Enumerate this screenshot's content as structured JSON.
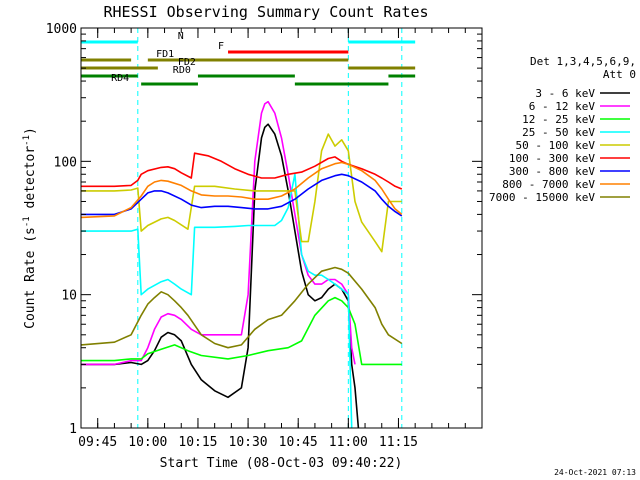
{
  "chart_data": {
    "type": "line",
    "title": "RHESSI Observing Summary Count Rates",
    "xlabel": "Start Time (08-Oct-03 09:40:22)",
    "ylabel_main": "Count Rate (s",
    "ylabel_sup1": "-1",
    "ylabel_mid": " detector",
    "ylabel_sup2": "-1",
    "ylabel_end": ")",
    "y_scale": "log",
    "ylim": [
      1,
      1000
    ],
    "xlim_minutes": [
      -20,
      100
    ],
    "x_ticks": [
      {
        "t": -15,
        "label": "09:45"
      },
      {
        "t": 0,
        "label": "10:00"
      },
      {
        "t": 15,
        "label": "10:15"
      },
      {
        "t": 30,
        "label": "10:30"
      },
      {
        "t": 45,
        "label": "10:45"
      },
      {
        "t": 60,
        "label": "11:00"
      },
      {
        "t": 75,
        "label": "11:15"
      }
    ],
    "y_ticks": [
      {
        "v": 1,
        "label": "1"
      },
      {
        "v": 10,
        "label": "10"
      },
      {
        "v": 100,
        "label": "100"
      },
      {
        "v": 1000,
        "label": "1000"
      }
    ],
    "legend_placement": "right",
    "legend_header": [
      "Det 1,3,4,5,6,9,",
      "Att 0"
    ],
    "series": [
      {
        "name": "3 - 6 keV",
        "color": "#000000",
        "points": [
          [
            -20,
            3
          ],
          [
            -10,
            3
          ],
          [
            -5,
            3.1
          ],
          [
            -2,
            3
          ],
          [
            0,
            3.2
          ],
          [
            2,
            3.8
          ],
          [
            4,
            4.8
          ],
          [
            6,
            5.2
          ],
          [
            8,
            5
          ],
          [
            10,
            4.5
          ],
          [
            13,
            3
          ],
          [
            16,
            2.3
          ],
          [
            20,
            1.9
          ],
          [
            24,
            1.7
          ],
          [
            28,
            2
          ],
          [
            30,
            4
          ],
          [
            32,
            60
          ],
          [
            34,
            150
          ],
          [
            35,
            180
          ],
          [
            36,
            190
          ],
          [
            38,
            160
          ],
          [
            40,
            110
          ],
          [
            42,
            60
          ],
          [
            44,
            30
          ],
          [
            46,
            15
          ],
          [
            48,
            10
          ],
          [
            50,
            9
          ],
          [
            52,
            9.5
          ],
          [
            54,
            11
          ],
          [
            56,
            12
          ],
          [
            58,
            11
          ],
          [
            60,
            9
          ],
          [
            61,
            3
          ],
          [
            62,
            2
          ],
          [
            63,
            1
          ]
        ]
      },
      {
        "name": "6 - 12 keV",
        "color": "#ff00ff",
        "points": [
          [
            -20,
            3
          ],
          [
            -10,
            3
          ],
          [
            -5,
            3.2
          ],
          [
            -2,
            3.2
          ],
          [
            0,
            4
          ],
          [
            2,
            5.5
          ],
          [
            4,
            6.8
          ],
          [
            6,
            7.2
          ],
          [
            8,
            7
          ],
          [
            10,
            6.5
          ],
          [
            13,
            5.5
          ],
          [
            16,
            5
          ],
          [
            20,
            5
          ],
          [
            24,
            5
          ],
          [
            28,
            5
          ],
          [
            30,
            10
          ],
          [
            32,
            100
          ],
          [
            34,
            230
          ],
          [
            35,
            270
          ],
          [
            36,
            280
          ],
          [
            38,
            230
          ],
          [
            40,
            150
          ],
          [
            42,
            80
          ],
          [
            44,
            40
          ],
          [
            46,
            20
          ],
          [
            48,
            14
          ],
          [
            50,
            12
          ],
          [
            52,
            12
          ],
          [
            54,
            13
          ],
          [
            56,
            13
          ],
          [
            58,
            12
          ],
          [
            60,
            10
          ],
          [
            61,
            4
          ],
          [
            62,
            3
          ]
        ]
      },
      {
        "name": "12 - 25 keV",
        "color": "#00ff00",
        "points": [
          [
            -20,
            3.2
          ],
          [
            -10,
            3.2
          ],
          [
            -5,
            3.3
          ],
          [
            -2,
            3.3
          ],
          [
            0,
            3.6
          ],
          [
            4,
            3.9
          ],
          [
            8,
            4.2
          ],
          [
            12,
            3.8
          ],
          [
            16,
            3.5
          ],
          [
            24,
            3.3
          ],
          [
            30,
            3.5
          ],
          [
            36,
            3.8
          ],
          [
            42,
            4
          ],
          [
            46,
            4.5
          ],
          [
            50,
            7
          ],
          [
            54,
            9
          ],
          [
            56,
            9.5
          ],
          [
            58,
            9
          ],
          [
            60,
            8
          ],
          [
            62,
            6
          ],
          [
            64,
            3
          ],
          [
            68,
            3
          ],
          [
            72,
            3
          ],
          [
            76,
            3
          ]
        ]
      },
      {
        "name": "25 - 50 keV",
        "color": "#00ffff",
        "points": [
          [
            -20,
            30
          ],
          [
            -10,
            30
          ],
          [
            -5,
            30
          ],
          [
            -3,
            31
          ],
          [
            -2,
            10
          ],
          [
            0,
            11
          ],
          [
            4,
            12.5
          ],
          [
            6,
            13
          ],
          [
            8,
            12
          ],
          [
            10,
            11
          ],
          [
            13,
            10
          ],
          [
            14,
            32
          ],
          [
            20,
            32
          ],
          [
            26,
            32.5
          ],
          [
            30,
            33
          ],
          [
            34,
            33
          ],
          [
            38,
            33
          ],
          [
            40,
            36
          ],
          [
            42,
            45
          ],
          [
            44,
            80
          ],
          [
            46,
            20
          ],
          [
            48,
            15
          ],
          [
            50,
            14
          ],
          [
            52,
            14
          ],
          [
            54,
            13
          ],
          [
            56,
            12
          ],
          [
            58,
            11
          ],
          [
            60,
            10
          ],
          [
            61,
            1
          ]
        ]
      },
      {
        "name": "50 - 100 keV",
        "color": "#cccc00",
        "points": [
          [
            -20,
            60
          ],
          [
            -10,
            60
          ],
          [
            -5,
            61
          ],
          [
            -3,
            63
          ],
          [
            -2,
            30
          ],
          [
            0,
            33
          ],
          [
            4,
            37
          ],
          [
            6,
            38
          ],
          [
            8,
            36
          ],
          [
            12,
            31
          ],
          [
            14,
            65
          ],
          [
            20,
            65
          ],
          [
            26,
            62
          ],
          [
            32,
            60
          ],
          [
            38,
            60
          ],
          [
            42,
            60
          ],
          [
            44,
            60
          ],
          [
            46,
            25
          ],
          [
            48,
            25
          ],
          [
            50,
            50
          ],
          [
            52,
            120
          ],
          [
            54,
            160
          ],
          [
            56,
            130
          ],
          [
            58,
            145
          ],
          [
            60,
            120
          ],
          [
            62,
            50
          ],
          [
            64,
            35
          ],
          [
            68,
            25
          ],
          [
            70,
            21
          ],
          [
            72,
            50
          ],
          [
            76,
            50
          ]
        ]
      },
      {
        "name": "100 - 300 keV",
        "color": "#ff0000",
        "points": [
          [
            -20,
            65
          ],
          [
            -10,
            65
          ],
          [
            -5,
            66
          ],
          [
            -3,
            72
          ],
          [
            -2,
            80
          ],
          [
            0,
            85
          ],
          [
            4,
            90
          ],
          [
            6,
            91
          ],
          [
            8,
            88
          ],
          [
            10,
            82
          ],
          [
            13,
            75
          ],
          [
            14,
            115
          ],
          [
            18,
            110
          ],
          [
            22,
            100
          ],
          [
            26,
            88
          ],
          [
            30,
            80
          ],
          [
            34,
            75
          ],
          [
            38,
            75
          ],
          [
            42,
            80
          ],
          [
            46,
            83
          ],
          [
            50,
            92
          ],
          [
            54,
            105
          ],
          [
            56,
            108
          ],
          [
            58,
            100
          ],
          [
            60,
            95
          ],
          [
            64,
            88
          ],
          [
            68,
            80
          ],
          [
            70,
            75
          ],
          [
            72,
            70
          ],
          [
            74,
            65
          ],
          [
            76,
            62
          ]
        ]
      },
      {
        "name": "300 - 800 keV",
        "color": "#0000ff",
        "points": [
          [
            -20,
            40
          ],
          [
            -10,
            40
          ],
          [
            -5,
            44
          ],
          [
            -2,
            52
          ],
          [
            0,
            58
          ],
          [
            2,
            60
          ],
          [
            4,
            60
          ],
          [
            6,
            58
          ],
          [
            10,
            52
          ],
          [
            13,
            47
          ],
          [
            16,
            45
          ],
          [
            20,
            46
          ],
          [
            24,
            46
          ],
          [
            28,
            45
          ],
          [
            32,
            44
          ],
          [
            36,
            44
          ],
          [
            40,
            46
          ],
          [
            44,
            52
          ],
          [
            48,
            62
          ],
          [
            52,
            72
          ],
          [
            56,
            78
          ],
          [
            58,
            80
          ],
          [
            60,
            78
          ],
          [
            64,
            70
          ],
          [
            68,
            60
          ],
          [
            70,
            52
          ],
          [
            72,
            46
          ],
          [
            74,
            42
          ],
          [
            76,
            39
          ]
        ]
      },
      {
        "name": "800 - 7000 keV",
        "color": "#ff8000",
        "points": [
          [
            -20,
            38
          ],
          [
            -10,
            39
          ],
          [
            -5,
            45
          ],
          [
            -2,
            55
          ],
          [
            0,
            65
          ],
          [
            2,
            70
          ],
          [
            4,
            72
          ],
          [
            6,
            71
          ],
          [
            10,
            66
          ],
          [
            13,
            60
          ],
          [
            16,
            56
          ],
          [
            20,
            55
          ],
          [
            24,
            55
          ],
          [
            28,
            54
          ],
          [
            32,
            52
          ],
          [
            36,
            52
          ],
          [
            40,
            55
          ],
          [
            44,
            62
          ],
          [
            48,
            75
          ],
          [
            52,
            88
          ],
          [
            56,
            96
          ],
          [
            58,
            98
          ],
          [
            60,
            95
          ],
          [
            64,
            85
          ],
          [
            68,
            72
          ],
          [
            70,
            62
          ],
          [
            72,
            52
          ],
          [
            74,
            44
          ],
          [
            76,
            40
          ]
        ]
      },
      {
        "name": "7000 - 15000 keV",
        "color": "#808000",
        "points": [
          [
            -20,
            4.2
          ],
          [
            -10,
            4.4
          ],
          [
            -5,
            5
          ],
          [
            -2,
            7
          ],
          [
            0,
            8.5
          ],
          [
            2,
            9.5
          ],
          [
            4,
            10.5
          ],
          [
            6,
            10
          ],
          [
            8,
            9
          ],
          [
            10,
            8
          ],
          [
            12,
            7
          ],
          [
            16,
            5
          ],
          [
            20,
            4.3
          ],
          [
            24,
            4
          ],
          [
            28,
            4.2
          ],
          [
            32,
            5.5
          ],
          [
            36,
            6.5
          ],
          [
            40,
            7
          ],
          [
            44,
            9
          ],
          [
            48,
            12
          ],
          [
            52,
            15
          ],
          [
            56,
            16
          ],
          [
            58,
            15.5
          ],
          [
            60,
            14.5
          ],
          [
            64,
            11
          ],
          [
            68,
            8
          ],
          [
            70,
            6
          ],
          [
            72,
            5
          ],
          [
            76,
            4.3
          ]
        ]
      }
    ],
    "top_bars": [
      {
        "label": "N",
        "color": "#00ffff",
        "segments": [
          [
            -20,
            -3
          ],
          [
            60,
            80
          ]
        ]
      },
      {
        "label": "F",
        "color": "#ff0000",
        "segments": [
          [
            24,
            60
          ]
        ]
      },
      {
        "label": "FD1",
        "color": "#808000",
        "segments": [
          [
            -20,
            -5
          ],
          [
            0,
            60
          ]
        ]
      },
      {
        "label": "FD2",
        "color": "#808000",
        "segments": [
          [
            -20,
            3
          ],
          [
            60,
            80
          ]
        ]
      },
      {
        "label": "RD0",
        "color": "#008000",
        "segments": [
          [
            -20,
            -3
          ],
          [
            15,
            44
          ],
          [
            72,
            80
          ]
        ]
      },
      {
        "label": "RD4",
        "color": "#008000",
        "segments": [
          [
            -2,
            15
          ],
          [
            44,
            72
          ]
        ]
      }
    ],
    "vertical_markers": [
      -3,
      60,
      76
    ],
    "timestamp": "24-Oct-2021 07:13"
  }
}
